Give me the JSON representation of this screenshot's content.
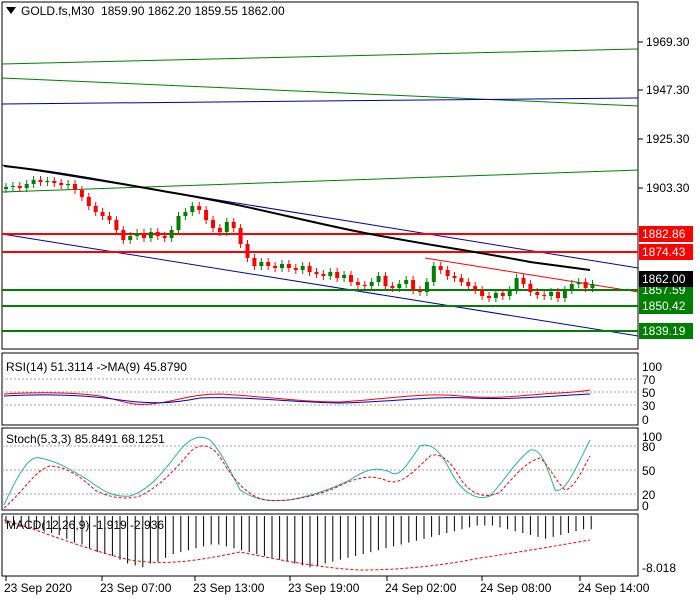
{
  "chart_header": {
    "symbol": "GOLD.fs,M30",
    "open": "1859.90",
    "high": "1862.20",
    "low": "1859.55",
    "close": "1862.00"
  },
  "price_axis": {
    "ticks": [
      "1969.30",
      "1947.30",
      "1925.30",
      "1903.30"
    ],
    "current_price": "1862.00"
  },
  "horizontal_levels": [
    {
      "value": "1882.86",
      "color": "#ff0000"
    },
    {
      "value": "1874.43",
      "color": "#ff0000"
    },
    {
      "value": "1857.59",
      "color": "#008000"
    },
    {
      "value": "1850.42",
      "color": "#008000"
    },
    {
      "value": "1839.19",
      "color": "#008000"
    }
  ],
  "rsi": {
    "label": "RSI(14) 51.3114  ->MA(9) 45.8790",
    "ticks": [
      "100",
      "70",
      "50",
      "30",
      "0"
    ]
  },
  "stoch": {
    "label": "Stoch(5,3,3) 85.8491 68.1251",
    "ticks": [
      "100",
      "80",
      "50",
      "20",
      "0"
    ]
  },
  "macd": {
    "label": "MACD(12,26,9) -1.919 -2.936",
    "ticks": [
      "-8.018"
    ]
  },
  "time_axis": [
    "23 Sep 2020",
    "23 Sep 07:00",
    "23 Sep 13:00",
    "23 Sep 19:00",
    "24 Sep 02:00",
    "24 Sep 08:00",
    "24 Sep 14:00"
  ],
  "colors": {
    "bull": "#008000",
    "bear": "#ff0000",
    "ma": "#000000",
    "support": "#008000",
    "resistance": "#ff0000",
    "channel_blue": "#0000a0",
    "rsi_line": "#0000cd",
    "signal_red": "#ff0000",
    "stoch_main": "#20b2aa",
    "current_price_bg": "#000000"
  }
}
